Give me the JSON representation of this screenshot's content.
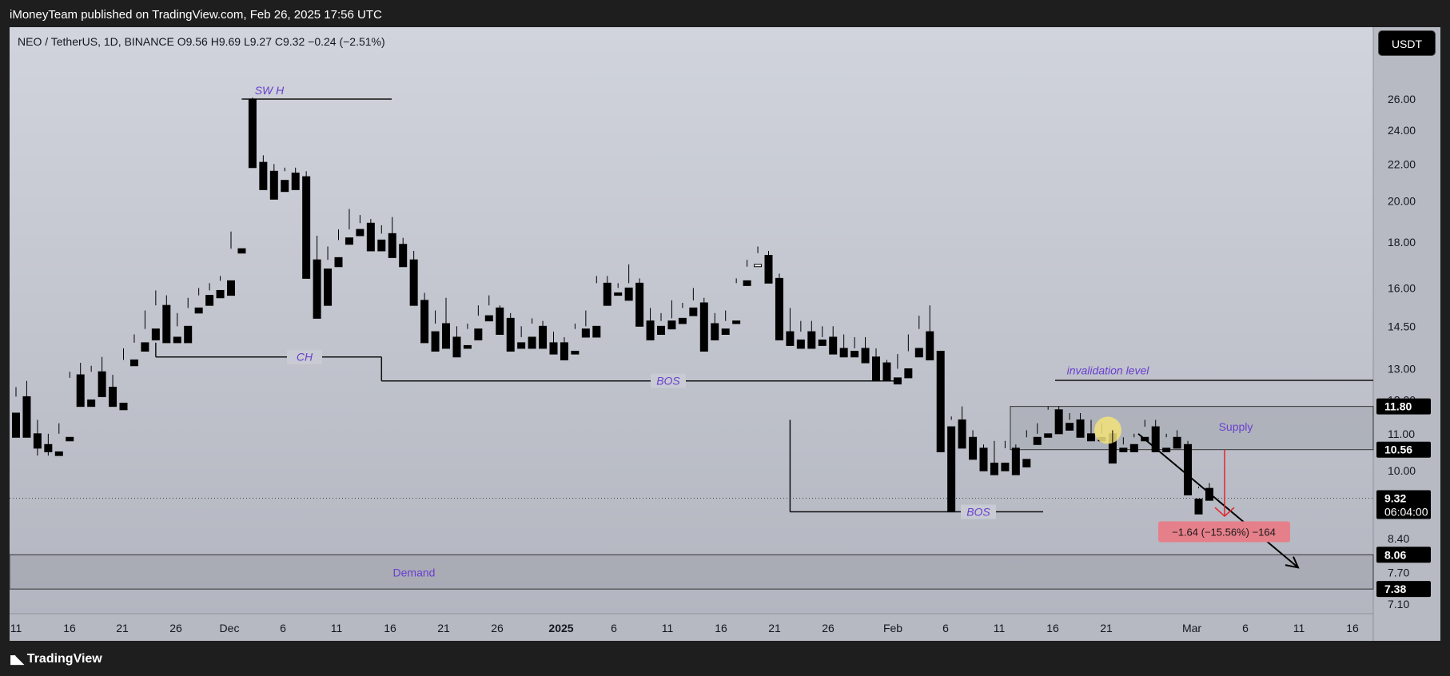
{
  "header": {
    "publisher_line": "iMoneyTeam published on TradingView.com, Feb 26, 2025 17:56 UTC"
  },
  "legend": {
    "text": "NEO / TetherUS, 1D, BINANCE  O9.56  H9.69  L9.27  C9.32  −0.24 (−2.51%)"
  },
  "currency_button": "USDT",
  "footer": {
    "brand": "TradingView",
    "logo_icon": "tradingview-logo-icon"
  },
  "colors": {
    "up": "#ffffff",
    "down": "#000000",
    "annotation": "#6a3fcf",
    "measure_bg": "#e57f8a",
    "measure_arrow": "#e0262d",
    "highlight": "#f2e27a",
    "bg_top": "#d1d4dc",
    "bg_bottom": "#b3b6c0"
  },
  "chart_data": {
    "type": "candlestick",
    "symbol": "NEO / TetherUS",
    "interval": "1D",
    "exchange": "BINANCE",
    "last": {
      "open": 9.56,
      "high": 9.69,
      "low": 9.27,
      "close": 9.32,
      "change": "−0.24",
      "change_pct": "−2.51%"
    },
    "y_scale": "log",
    "y_tick_labels": [
      "26.00",
      "24.00",
      "22.00",
      "20.00",
      "18.00",
      "16.00",
      "14.50",
      "13.00",
      "12.00",
      "11.00",
      "10.00",
      "8.40",
      "7.70",
      "7.10"
    ],
    "x_tick_labels": [
      "11",
      "16",
      "21",
      "26",
      "Dec",
      "6",
      "11",
      "16",
      "21",
      "26",
      "2025",
      "6",
      "11",
      "16",
      "21",
      "26",
      "Feb",
      "6",
      "11",
      "16",
      "21",
      "Mar",
      "6",
      "11",
      "16"
    ],
    "candles": [
      [
        11.6,
        12.4,
        12.1,
        10.9
      ],
      [
        12.1,
        12.6,
        11.1,
        10.9
      ],
      [
        11.0,
        11.4,
        10.4,
        10.6
      ],
      [
        10.7,
        11.0,
        10.4,
        10.5
      ],
      [
        10.5,
        11.3,
        11.0,
        10.4
      ],
      [
        10.9,
        12.9,
        12.7,
        10.8
      ],
      [
        12.8,
        13.2,
        12.0,
        11.8
      ],
      [
        12.0,
        13.1,
        12.9,
        11.8
      ],
      [
        12.9,
        13.4,
        12.4,
        12.1
      ],
      [
        12.4,
        12.8,
        12.2,
        11.8
      ],
      [
        11.9,
        13.7,
        13.3,
        11.7
      ],
      [
        13.3,
        14.2,
        13.9,
        13.1
      ],
      [
        13.9,
        15.1,
        14.4,
        13.6
      ],
      [
        14.4,
        15.9,
        15.3,
        14.0
      ],
      [
        15.3,
        15.7,
        14.1,
        13.9
      ],
      [
        14.1,
        15.0,
        14.5,
        13.9
      ],
      [
        14.5,
        15.6,
        15.2,
        13.9
      ],
      [
        15.2,
        16.0,
        15.7,
        15.0
      ],
      [
        15.7,
        16.2,
        15.9,
        15.3
      ],
      [
        15.9,
        16.5,
        16.3,
        15.6
      ],
      [
        16.3,
        18.5,
        17.7,
        15.7
      ],
      [
        17.7,
        26.0,
        26.0,
        17.5
      ],
      [
        26.0,
        26.1,
        22.3,
        21.8
      ],
      [
        22.1,
        22.5,
        21.6,
        20.6
      ],
      [
        21.6,
        22.0,
        21.2,
        20.1
      ],
      [
        21.1,
        21.8,
        21.6,
        20.5
      ],
      [
        21.5,
        21.8,
        21.2,
        20.6
      ],
      [
        21.3,
        21.6,
        17.2,
        16.4
      ],
      [
        17.2,
        18.3,
        16.9,
        14.8
      ],
      [
        16.8,
        17.8,
        17.2,
        15.3
      ],
      [
        17.3,
        18.6,
        18.1,
        16.9
      ],
      [
        18.2,
        19.6,
        18.6,
        17.9
      ],
      [
        18.6,
        19.3,
        18.9,
        18.3
      ],
      [
        18.9,
        19.1,
        18.0,
        17.6
      ],
      [
        18.1,
        18.8,
        18.4,
        17.6
      ],
      [
        18.4,
        19.2,
        17.8,
        17.3
      ],
      [
        17.9,
        18.2,
        17.2,
        16.9
      ],
      [
        17.2,
        17.6,
        15.5,
        15.3
      ],
      [
        15.5,
        15.8,
        14.2,
        13.9
      ],
      [
        14.3,
        15.1,
        14.6,
        13.6
      ],
      [
        14.6,
        15.6,
        14.0,
        13.7
      ],
      [
        14.1,
        14.5,
        13.8,
        13.4
      ],
      [
        13.8,
        14.6,
        14.4,
        13.7
      ],
      [
        14.4,
        15.3,
        14.9,
        14.0
      ],
      [
        14.9,
        15.7,
        15.3,
        14.7
      ],
      [
        15.2,
        15.3,
        14.7,
        14.2
      ],
      [
        14.8,
        15.0,
        13.9,
        13.6
      ],
      [
        13.9,
        14.5,
        14.1,
        13.7
      ],
      [
        14.1,
        14.8,
        14.6,
        13.7
      ],
      [
        14.5,
        14.7,
        13.9,
        13.7
      ],
      [
        13.9,
        14.3,
        13.9,
        13.5
      ],
      [
        13.9,
        14.1,
        13.6,
        13.3
      ],
      [
        13.6,
        14.6,
        14.4,
        13.5
      ],
      [
        14.4,
        15.1,
        14.5,
        14.1
      ],
      [
        14.5,
        16.5,
        16.2,
        14.1
      ],
      [
        16.2,
        16.5,
        15.8,
        15.3
      ],
      [
        15.8,
        16.2,
        16.0,
        15.7
      ],
      [
        16.0,
        17.0,
        16.2,
        15.5
      ],
      [
        16.2,
        16.4,
        14.7,
        14.5
      ],
      [
        14.7,
        15.2,
        14.6,
        14.0
      ],
      [
        14.5,
        15.0,
        14.7,
        14.2
      ],
      [
        14.7,
        15.5,
        14.8,
        14.4
      ],
      [
        14.8,
        15.4,
        15.2,
        14.6
      ],
      [
        15.2,
        16.0,
        15.5,
        14.9
      ],
      [
        15.4,
        15.6,
        14.7,
        13.6
      ],
      [
        14.6,
        15.0,
        14.4,
        14.0
      ],
      [
        14.4,
        15.1,
        14.7,
        14.2
      ],
      [
        14.7,
        16.4,
        16.2,
        14.6
      ],
      [
        16.3,
        17.2,
        16.9,
        16.1
      ],
      [
        16.9,
        17.8,
        17.5,
        17.0
      ],
      [
        17.4,
        17.6,
        16.4,
        16.2
      ],
      [
        16.4,
        16.6,
        14.4,
        14.0
      ],
      [
        14.3,
        15.2,
        14.0,
        13.8
      ],
      [
        14.0,
        14.7,
        14.3,
        13.7
      ],
      [
        14.3,
        14.7,
        14.0,
        13.7
      ],
      [
        14.0,
        14.5,
        14.1,
        13.8
      ],
      [
        14.1,
        14.5,
        13.7,
        13.5
      ],
      [
        13.7,
        14.2,
        13.6,
        13.4
      ],
      [
        13.6,
        14.1,
        13.7,
        13.4
      ],
      [
        13.7,
        14.1,
        13.4,
        13.2
      ],
      [
        13.4,
        13.7,
        13.1,
        12.6
      ],
      [
        13.2,
        13.3,
        12.7,
        12.6
      ],
      [
        12.7,
        13.5,
        13.0,
        12.5
      ],
      [
        13.0,
        14.2,
        13.6,
        12.7
      ],
      [
        13.7,
        14.9,
        14.4,
        13.4
      ],
      [
        14.3,
        15.3,
        13.4,
        13.3
      ],
      [
        13.6,
        13.6,
        11.2,
        10.5
      ],
      [
        11.2,
        11.5,
        11.4,
        9.0
      ],
      [
        11.4,
        11.8,
        10.9,
        10.6
      ],
      [
        10.9,
        11.1,
        10.6,
        10.3
      ],
      [
        10.6,
        10.7,
        10.2,
        10.0
      ],
      [
        10.2,
        10.8,
        10.2,
        9.9
      ],
      [
        10.2,
        10.8,
        10.6,
        10.0
      ],
      [
        10.6,
        10.7,
        10.3,
        9.9
      ],
      [
        10.3,
        11.1,
        10.9,
        10.1
      ],
      [
        10.9,
        11.3,
        11.0,
        10.7
      ],
      [
        11.0,
        11.8,
        11.7,
        10.9
      ],
      [
        11.7,
        11.8,
        11.3,
        11.0
      ],
      [
        11.3,
        11.6,
        11.4,
        11.1
      ],
      [
        11.4,
        11.6,
        11.0,
        10.9
      ],
      [
        11.0,
        11.4,
        10.9,
        10.8
      ],
      [
        10.9,
        11.3,
        11.0,
        10.8
      ],
      [
        11.0,
        11.1,
        10.6,
        10.2
      ],
      [
        10.6,
        10.9,
        10.7,
        10.5
      ],
      [
        10.7,
        11.0,
        10.9,
        10.5
      ],
      [
        10.9,
        11.4,
        11.2,
        10.8
      ],
      [
        11.2,
        11.4,
        10.6,
        10.5
      ],
      [
        10.6,
        11.0,
        10.9,
        10.5
      ],
      [
        10.9,
        11.1,
        10.7,
        10.6
      ],
      [
        10.7,
        10.8,
        9.56,
        9.4
      ],
      [
        9.3,
        9.6,
        9.56,
        8.95
      ],
      [
        9.56,
        9.69,
        9.32,
        9.27
      ]
    ],
    "annotations": [
      {
        "label": "SW H"
      },
      {
        "label": "CH"
      },
      {
        "label": "BOS"
      },
      {
        "label": "BOS"
      },
      {
        "label": "invalidation level"
      },
      {
        "label": "Supply"
      },
      {
        "label": "Demand"
      }
    ],
    "supply_zone": [
      10.56,
      11.8
    ],
    "demand_zone": [
      7.38,
      8.06
    ],
    "measure_label": "−1.64 (−15.56%) −164",
    "price_badges": [
      {
        "value": "11.80"
      },
      {
        "value": "10.56"
      },
      {
        "value": "9.32",
        "sub": "06:04:00"
      },
      {
        "value": "8.06"
      },
      {
        "value": "7.38"
      }
    ]
  }
}
